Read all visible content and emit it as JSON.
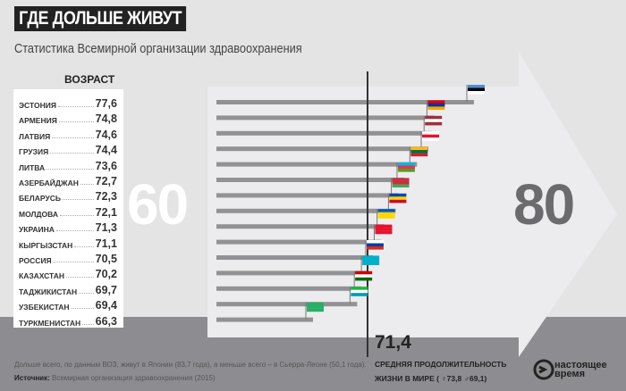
{
  "header": {
    "title": "ГДЕ ДОЛЬШЕ ЖИВУТ",
    "subtitle": "Статистика Всемирной организации здравоохранения"
  },
  "table": {
    "heading": "ВОЗРАСТ"
  },
  "chart_data": {
    "type": "bar",
    "orientation": "horizontal",
    "categories": [
      "ЭСТОНИЯ",
      "АРМЕНИЯ",
      "ЛАТВИЯ",
      "ГРУЗИЯ",
      "ЛИТВА",
      "АЗЕРБАЙДЖАН",
      "БЕЛАРУСЬ",
      "МОЛДОВА",
      "УКРАИНА",
      "КЫРГЫЗСТАН",
      "РОССИЯ",
      "КАЗАХСТАН",
      "ТАДЖИКИСТАН",
      "УЗБЕКИСТАН",
      "ТУРКМЕНИСТАН"
    ],
    "values": [
      77.6,
      74.8,
      74.6,
      74.4,
      73.6,
      72.7,
      72.3,
      72.1,
      71.3,
      71.1,
      70.5,
      70.2,
      69.7,
      69.4,
      66.3
    ],
    "value_labels": [
      "77,6",
      "74,8",
      "74,6",
      "74,4",
      "73,6",
      "72,7",
      "72,3",
      "72,1",
      "71,3",
      "71,1",
      "70,5",
      "70,2",
      "69,7",
      "69,4",
      "66,3"
    ],
    "axis_start_label": "60",
    "axis_end_label": "80",
    "reference_line": {
      "value": 71.4,
      "label": "71,4",
      "text_1": "СРЕДНЯЯ ПРОДОЛЖИТЕЛЬНОСТЬ",
      "text_2": "ЖИЗНИ В МИРЕ ( ♀73,8  ♂69,1)"
    },
    "bar_color": "#929296",
    "flags": [
      [
        "#4d8fd6",
        "#000000",
        "#ffffff"
      ],
      [
        "#d90012",
        "#0033a0",
        "#f2a800"
      ],
      [
        "#9e3039",
        "#ffffff",
        "#9e3039"
      ],
      [
        "#ffffff",
        "#e8112d",
        "#ffffff"
      ],
      [
        "#fdb913",
        "#006a44",
        "#c1272d"
      ],
      [
        "#00b5e2",
        "#ef3340",
        "#509e2f"
      ],
      [
        "#c8313e",
        "#c8313e",
        "#4aa657"
      ],
      [
        "#0046ae",
        "#ffd200",
        "#cc092f"
      ],
      [
        "#0057b7",
        "#ffd700",
        "#ffd700"
      ],
      [
        "#e8112d",
        "#e8112d",
        "#e8112d"
      ],
      [
        "#ffffff",
        "#0039a6",
        "#d52b1e"
      ],
      [
        "#00afca",
        "#00afca",
        "#00afca"
      ],
      [
        "#cc0000",
        "#ffffff",
        "#006600"
      ],
      [
        "#1eb53a",
        "#ffffff",
        "#0099b5"
      ],
      [
        "#28ae66",
        "#28ae66",
        "#28ae66"
      ]
    ]
  },
  "footer": {
    "note": "Дольше всего, по данным ВОЗ, живут в Японии (83,7 года), а меньше всего – в Сьерра-Леоне (50,1 года).",
    "source_label": "Источник:",
    "source_text": " Всемирная организация здравоохранения (2015)",
    "logo_1": "настоящее",
    "logo_2": "время"
  }
}
